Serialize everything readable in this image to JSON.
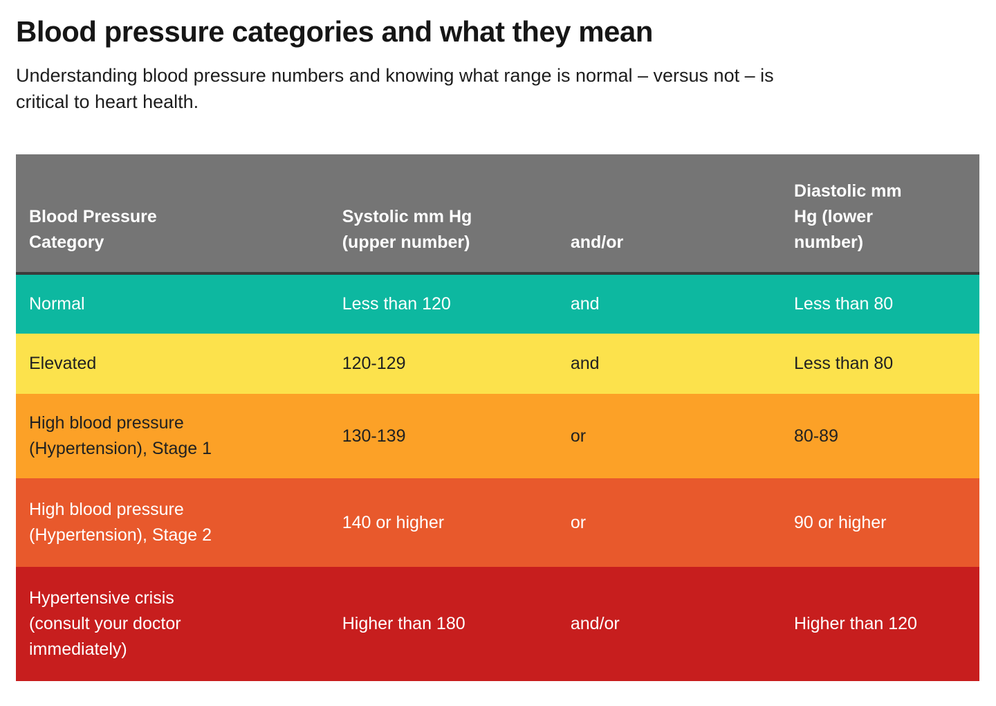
{
  "page": {
    "title": "Blood pressure categories and what they mean",
    "subtitle_lines": [
      "Understanding blood pressure numbers and knowing what range is normal – versus not – is",
      "critical to heart health."
    ]
  },
  "colors": {
    "header_bg": "#757575",
    "header_divider": "#3b3b3b",
    "header_text": "#ffffff",
    "normal_bg": "#0db8a0",
    "elevated_bg": "#fce24c",
    "stage1_bg": "#fca127",
    "stage2_bg": "#e8592c",
    "crisis_bg": "#c71e1e",
    "dark_text": "#212121",
    "white_text": "#ffffff"
  },
  "table": {
    "columns": [
      {
        "header_lines": [
          "Blood Pressure",
          "Category"
        ]
      },
      {
        "header_lines": [
          "Systolic mm Hg",
          "(upper number)"
        ]
      },
      {
        "header_lines": [
          "and/or"
        ]
      },
      {
        "header_lines": [
          "Diastolic mm",
          "Hg (lower",
          "number)"
        ]
      }
    ],
    "rows": [
      {
        "category_lines": [
          "Normal"
        ],
        "systolic": "Less than 120",
        "connector": "and",
        "diastolic": "Less than 80",
        "row_color": "#0db8a0",
        "text_color": "#ffffff"
      },
      {
        "category_lines": [
          "Elevated"
        ],
        "systolic": "120-129",
        "connector": "and",
        "diastolic": "Less than 80",
        "row_color": "#fce24c",
        "text_color": "#212121"
      },
      {
        "category_lines": [
          "High blood pressure",
          "(Hypertension), Stage 1"
        ],
        "systolic": "130-139",
        "connector": "or",
        "diastolic": "80-89",
        "row_color": "#fca127",
        "text_color": "#212121"
      },
      {
        "category_lines": [
          "High blood pressure",
          "(Hypertension), Stage 2"
        ],
        "systolic": "140 or higher",
        "connector": "or",
        "diastolic": "90 or higher",
        "row_color": "#e8592c",
        "text_color": "#ffffff"
      },
      {
        "category_lines": [
          "Hypertensive crisis",
          "(consult your doctor",
          "immediately)"
        ],
        "systolic": "Higher than 180",
        "connector": "and/or",
        "diastolic": "Higher than 120",
        "row_color": "#c71e1e",
        "text_color": "#ffffff"
      }
    ]
  }
}
